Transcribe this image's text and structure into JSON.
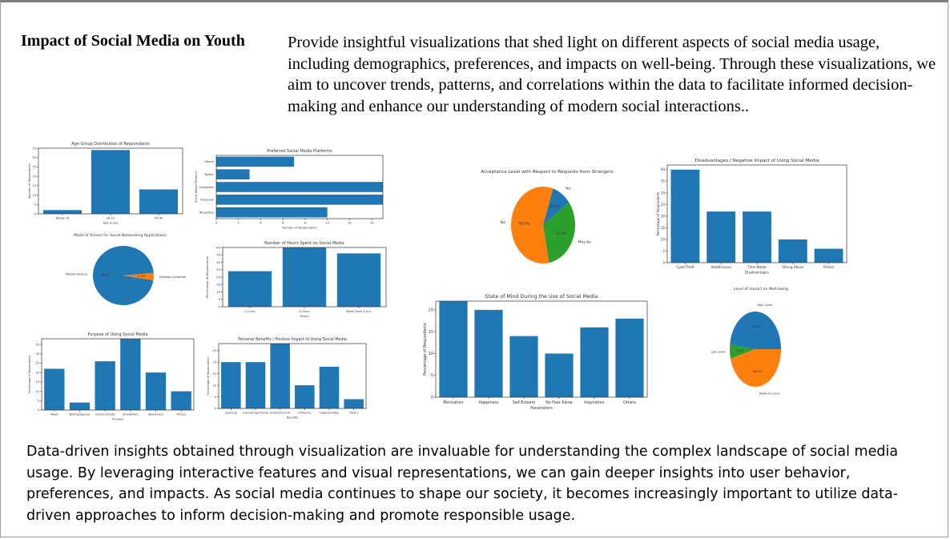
{
  "page": {
    "title": "Impact of Social Media on Youth",
    "intro": "Provide insightful visualizations that shed light on different aspects of social media usage, including demographics, preferences, and impacts on well-being. Through these visualizations, we aim to uncover trends, patterns, and correlations within the data to facilitate informed decision-making and enhance our understanding of modern social interactions..",
    "outro": "Data-driven insights obtained through visualization are invaluable for understanding the complex landscape of social media usage. By leveraging interactive features and visual representations, we can gain deeper insights into user behavior, preferences, and impacts. As social media continues to shape our society, it becomes increasingly important to utilize data-driven approaches to inform decision-making and promote responsible usage."
  },
  "colors": {
    "blue": "#1f77b4",
    "orange": "#ff7f0e",
    "green": "#2ca02c",
    "axis": "#333333"
  },
  "chart_data": [
    {
      "id": "age",
      "type": "bar",
      "title": "Age Group Distribution of Respondents",
      "xlabel": "Age Group",
      "ylabel": "Number of Respondents",
      "categories": [
        "Below 18",
        "18-23",
        "24-30"
      ],
      "values": [
        2,
        34,
        13
      ],
      "ylim": [
        0,
        35
      ],
      "yticks": [
        0,
        5,
        10,
        15,
        20,
        25,
        30,
        35
      ],
      "grid": false
    },
    {
      "id": "platforms",
      "type": "barh",
      "title": "Preferred Social Media Platforms",
      "xlabel": "Number of Respondents",
      "ylabel": "Social Media Platform",
      "categories": [
        "WhatsApp",
        "Facebook",
        "Instagram",
        "Twitter",
        "Others"
      ],
      "values": [
        10,
        15,
        15,
        3,
        7
      ],
      "xlim": [
        0,
        15
      ],
      "xticks": [
        0,
        2,
        4,
        6,
        8,
        10,
        12,
        14
      ],
      "grid": false
    },
    {
      "id": "access",
      "type": "pie",
      "title": "Mode of Access for Social Networking Applications",
      "labels": [
        "Mobile Devices",
        "Desktop Computer"
      ],
      "values": [
        96.0,
        4.0
      ],
      "pct_labels": [
        "96.0%",
        "4.0%"
      ]
    },
    {
      "id": "hours",
      "type": "bar",
      "title": "Number of Hours Spent on Social Media",
      "xlabel": "Hours",
      "ylabel": "Percentage of Respondents",
      "categories": [
        "1-2 hrs.",
        "3-4 hrs.",
        "More Than 4 hrs."
      ],
      "values": [
        24,
        40,
        36
      ],
      "ylim": [
        0,
        40
      ],
      "yticks": [
        0,
        5,
        10,
        15,
        20,
        25,
        30,
        35,
        40
      ],
      "grid": false
    },
    {
      "id": "purpose",
      "type": "bar",
      "title": "Purpose of Using Social Media",
      "xlabel": "Purpose",
      "ylabel": "Percentage of Respondents",
      "categories": [
        "News",
        "Belongingness",
        "Communicate",
        "SharePosts",
        "Awareness",
        "Others"
      ],
      "values": [
        22,
        4,
        26,
        38,
        20,
        10
      ],
      "ylim": [
        0,
        38
      ],
      "yticks": [
        0,
        5,
        10,
        15,
        20,
        25,
        30,
        35
      ],
      "grid": false
    },
    {
      "id": "benefits",
      "type": "bar",
      "title": "Personal Benefits / Positive Impact of Using Social Media",
      "xlabel": "Benefits",
      "ylabel": "Percentage of Respondents",
      "categories": [
        "Learning",
        "connecting friends",
        "Entertainment",
        "Influence",
        "Opportunities",
        "Others"
      ],
      "values": [
        20,
        20,
        28,
        10,
        18,
        4
      ],
      "ylim": [
        0,
        28
      ],
      "yticks": [
        0,
        5,
        10,
        15,
        20,
        25
      ],
      "grid": false
    },
    {
      "id": "strangers",
      "type": "pie",
      "title": "Acceptance Level with Respect to Requests from Strangers",
      "labels": [
        "Yes",
        "No",
        "May be"
      ],
      "values": [
        10.0,
        58.0,
        32.0
      ],
      "pct_labels": [
        "10.0%",
        "58.0%",
        "32.0%"
      ]
    },
    {
      "id": "disadvantages",
      "type": "bar",
      "title": "Disadvantages / Negative Impact of Using Social Media",
      "xlabel": "Disadvantages",
      "ylabel": "Percentage of Respondents",
      "categories": [
        "CyberTheft",
        "Healthissues",
        "Time Waste",
        "Strong Abuse",
        "Others"
      ],
      "values": [
        40,
        22,
        22,
        10,
        6
      ],
      "ylim": [
        0,
        42
      ],
      "yticks": [
        0,
        5,
        10,
        15,
        20,
        25,
        30,
        35,
        40
      ],
      "grid": false
    },
    {
      "id": "mind",
      "type": "bar",
      "title": "State of Mind During the Use of Social Media",
      "xlabel": "Parameters",
      "ylabel": "Percentage of Respondents",
      "categories": [
        "Motivation",
        "Happiness",
        "Self Esteem",
        "No Fear Alone",
        "Inspiration",
        "Others"
      ],
      "values": [
        22,
        20,
        14,
        10,
        16,
        18
      ],
      "ylim": [
        0,
        22
      ],
      "yticks": [
        0,
        5,
        10,
        15,
        20
      ],
      "grid": false
    },
    {
      "id": "wellbeing",
      "type": "pie",
      "title": "Level of Impact on Well-being",
      "labels": [
        "High Level",
        "Low Level",
        "Medium Level"
      ],
      "values": [
        48.0,
        6.0,
        46.0
      ],
      "pct_labels": [
        "48.0%",
        "6.0%",
        "46.0%"
      ]
    }
  ]
}
